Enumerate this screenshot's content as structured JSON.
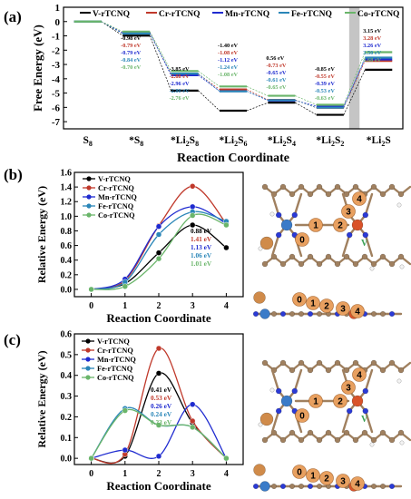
{
  "colors": {
    "V-rTCNQ": "#000000",
    "Cr-rTCNQ": "#c0392b",
    "Mn-rTCNQ": "#1f2bd0",
    "Fe-rTCNQ": "#2a86b8",
    "Co-rTCNQ": "#6ab56a",
    "carbon": "#a0805f",
    "nitrogen": "#2b3ad6",
    "metal": "#d9532a",
    "lithium": "#d08b4a",
    "sulfur_label": "#e8a060",
    "highlight": "#bbbbbb"
  },
  "chart_data": [
    {
      "panel": "(a)",
      "type": "line",
      "subtype": "energy-step-diagram",
      "ylabel": "Free Energy (eV)",
      "xlabel": "Reaction Coordinate",
      "categories": [
        "S8",
        "*S8",
        "*Li2S8",
        "*Li2S6",
        "*Li2S4",
        "*Li2S2",
        "*Li2S"
      ],
      "category_labels": [
        {
          "base": "S",
          "sub": "8"
        },
        {
          "base": "*S",
          "sub": "8"
        },
        {
          "base": "*Li",
          "sub": "2",
          "mid": "S",
          "sub2": "8"
        },
        {
          "base": "*Li",
          "sub": "2",
          "mid": "S",
          "sub2": "6"
        },
        {
          "base": "*Li",
          "sub": "2",
          "mid": "S",
          "sub2": "4"
        },
        {
          "base": "*Li",
          "sub": "2",
          "mid": "S",
          "sub2": "2"
        },
        {
          "base": "*Li",
          "sub": "2",
          "mid": "S",
          "sub2": ""
        }
      ],
      "ylim": [
        -7.5,
        1.0
      ],
      "yticks": [
        "1",
        "0",
        "-1",
        "-2",
        "-3",
        "-4",
        "-5",
        "-6",
        "-7"
      ],
      "legend": [
        "V-rTCNQ",
        "Cr-rTCNQ",
        "Mn-rTCNQ",
        "Fe-rTCNQ",
        "Co-rTCNQ"
      ],
      "highlight_step": "*Li2S2 → *Li2S",
      "series": [
        {
          "name": "V-rTCNQ",
          "values": [
            0,
            -0.98,
            -4.83,
            -6.23,
            -5.67,
            -6.52,
            -3.37
          ]
        },
        {
          "name": "Cr-rTCNQ",
          "values": [
            0,
            -0.79,
            -3.67,
            -4.75,
            -5.48,
            -6.03,
            -2.75
          ]
        },
        {
          "name": "Mn-rTCNQ",
          "values": [
            0,
            -0.79,
            -3.75,
            -4.87,
            -5.52,
            -5.91,
            -2.65
          ]
        },
        {
          "name": "Fe-rTCNQ",
          "values": [
            0,
            -0.84,
            -3.64,
            -4.88,
            -5.49,
            -6.02,
            -2.52
          ]
        },
        {
          "name": "Co-rTCNQ",
          "values": [
            0,
            -0.7,
            -3.46,
            -4.54,
            -5.19,
            -5.82,
            -2.14
          ]
        }
      ],
      "annotations": [
        {
          "step": 1,
          "values": [
            "-0.98 eV",
            "-0.79 eV",
            "-0.79 eV",
            "-0.84 eV",
            "-0.70 eV"
          ]
        },
        {
          "step": 2,
          "values": [
            "-3.85 eV",
            "-2.88 eV",
            "-2.96 eV",
            "-2.80 eV",
            "-2.76 eV"
          ]
        },
        {
          "step": 3,
          "values": [
            "-1.40 eV",
            "-1.08 eV",
            "-1.12 eV",
            "-1.24 eV",
            "-1.08 eV"
          ]
        },
        {
          "step": 4,
          "values": [
            "0.56 eV",
            "-0.73 eV",
            "-0.65 eV",
            "-0.61 eV",
            "-0.65 eV"
          ]
        },
        {
          "step": 5,
          "values": [
            "-0.85 eV",
            "-0.55 eV",
            "-0.39 eV",
            "-0.53 eV",
            "-0.63 eV"
          ]
        },
        {
          "step": 6,
          "values": [
            "3.15 eV",
            "3.28 eV",
            "3.26 eV",
            "3.50 eV",
            "3.68 eV"
          ]
        }
      ]
    },
    {
      "panel": "(b)",
      "type": "line",
      "ylabel": "Relative Energy (eV)",
      "xlabel": "Reaction Coordinate",
      "x": [
        0,
        1,
        2,
        3,
        4
      ],
      "xlim": [
        -0.5,
        4.5
      ],
      "ylim": [
        -0.1,
        1.6
      ],
      "yticks": [
        0.0,
        0.2,
        0.4,
        0.6,
        0.8,
        1.0,
        1.2,
        1.4,
        1.6
      ],
      "legend": [
        "V-rTCNQ",
        "Cr-rTCNQ",
        "Mn-rTCNQ",
        "Fe-rTCNQ",
        "Co-rTCNQ"
      ],
      "series": [
        {
          "name": "V-rTCNQ",
          "values": [
            0,
            0.08,
            0.5,
            0.88,
            0.57
          ]
        },
        {
          "name": "Cr-rTCNQ",
          "values": [
            0,
            0.12,
            0.87,
            1.41,
            0.9
          ]
        },
        {
          "name": "Mn-rTCNQ",
          "values": [
            0,
            0.14,
            0.86,
            1.13,
            0.9
          ]
        },
        {
          "name": "Fe-rTCNQ",
          "values": [
            0,
            0.1,
            0.75,
            1.06,
            0.93
          ]
        },
        {
          "name": "Co-rTCNQ",
          "values": [
            0,
            0.04,
            0.42,
            1.01,
            0.88
          ]
        }
      ],
      "barrier_labels": [
        "0.88 eV",
        "1.41 eV",
        "1.13 eV",
        "1.06 eV",
        "1.01 eV"
      ]
    },
    {
      "panel": "(c)",
      "type": "line",
      "ylabel": "Relative Energy (eV)",
      "xlabel": "Reaction Coordinate",
      "x": [
        0,
        1,
        2,
        3,
        4
      ],
      "xlim": [
        -0.5,
        4.5
      ],
      "ylim": [
        -0.03,
        0.6
      ],
      "yticks": [
        0.0,
        0.1,
        0.2,
        0.3,
        0.4,
        0.5,
        0.6
      ],
      "legend": [
        "V-rTCNQ",
        "Cr-rTCNQ",
        "Mn-rTCNQ",
        "Fe-rTCNQ",
        "Co-rTCNQ"
      ],
      "series": [
        {
          "name": "V-rTCNQ",
          "values": [
            0,
            0.01,
            0.41,
            0.17,
            0.0
          ]
        },
        {
          "name": "Cr-rTCNQ",
          "values": [
            0,
            0.02,
            0.53,
            0.18,
            0.0
          ]
        },
        {
          "name": "Mn-rTCNQ",
          "values": [
            0,
            0.04,
            0.01,
            0.26,
            0.0
          ]
        },
        {
          "name": "Fe-rTCNQ",
          "values": [
            0,
            0.24,
            0.16,
            0.15,
            0.0
          ]
        },
        {
          "name": "Co-rTCNQ",
          "values": [
            0,
            0.23,
            0.16,
            0.15,
            0.0
          ]
        }
      ],
      "barrier_labels": [
        "0.41 eV",
        "0.53 eV",
        "0.26 eV",
        "0.24 eV",
        "0.23 eV"
      ]
    }
  ],
  "structures": {
    "b_top_labels": [
      "0",
      "1",
      "2",
      "3",
      "4"
    ],
    "b_top_metal": "V",
    "b_side_labels": [
      "0",
      "1",
      "2",
      "3",
      "4"
    ],
    "c_top_labels": [
      "0",
      "1",
      "2",
      "3",
      "4"
    ],
    "c_top_metal": "V",
    "c_side_labels": [
      "0",
      "1",
      "2",
      "3",
      "4"
    ]
  }
}
